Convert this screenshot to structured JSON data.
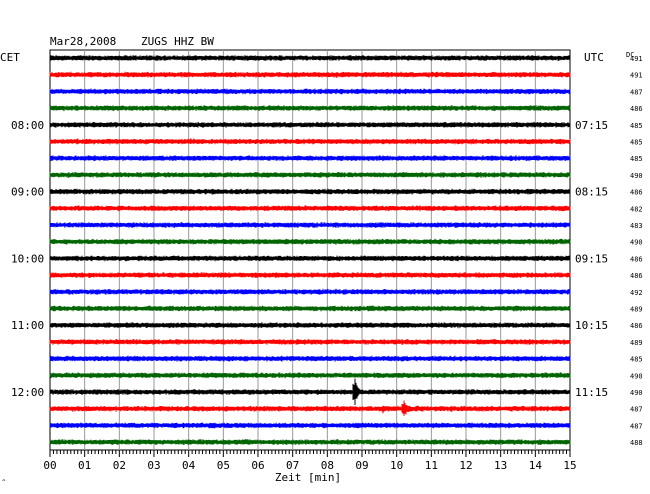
{
  "header": {
    "date": "Mar28,2008",
    "station": "ZUGS HHZ BW"
  },
  "left_timezone": "CET",
  "right_timezone": "UTC",
  "dc_label": "DC",
  "xlabel": "Zeit [min]",
  "chart_data": {
    "type": "line",
    "title": "Mar28,2008   ZUGS HHZ BW",
    "xlabel": "Zeit [min]",
    "xlim": [
      0,
      15
    ],
    "x_ticks": [
      "00",
      "01",
      "02",
      "03",
      "04",
      "05",
      "06",
      "07",
      "08",
      "09",
      "10",
      "11",
      "12",
      "13",
      "14",
      "15"
    ],
    "trace_colors": [
      "#000000",
      "#ff0000",
      "#0000ff",
      "#006400"
    ],
    "left_hour_labels": [
      {
        "trace": 4,
        "label": "08:00"
      },
      {
        "trace": 8,
        "label": "09:00"
      },
      {
        "trace": 12,
        "label": "10:00"
      },
      {
        "trace": 16,
        "label": "11:00"
      },
      {
        "trace": 20,
        "label": "12:00"
      }
    ],
    "right_hour_labels": [
      {
        "trace": 4,
        "label": "07:15"
      },
      {
        "trace": 8,
        "label": "08:15"
      },
      {
        "trace": 12,
        "label": "09:15"
      },
      {
        "trace": 16,
        "label": "10:15"
      },
      {
        "trace": 20,
        "label": "11:15"
      }
    ],
    "dc_offsets": [
      "491",
      "491",
      "487",
      "486",
      "485",
      "485",
      "485",
      "490",
      "486",
      "482",
      "483",
      "490",
      "486",
      "486",
      "492",
      "489",
      "486",
      "489",
      "485",
      "490",
      "490",
      "487",
      "487",
      "488"
    ],
    "events": [
      {
        "trace": 20,
        "x_min": 8.78,
        "amplitude": 17,
        "width_min": 0.25
      },
      {
        "trace": 21,
        "x_min": 9.6,
        "amplitude": 5,
        "width_min": 0.25
      },
      {
        "trace": 21,
        "x_min": 10.2,
        "amplitude": 10,
        "width_min": 0.4
      }
    ]
  }
}
